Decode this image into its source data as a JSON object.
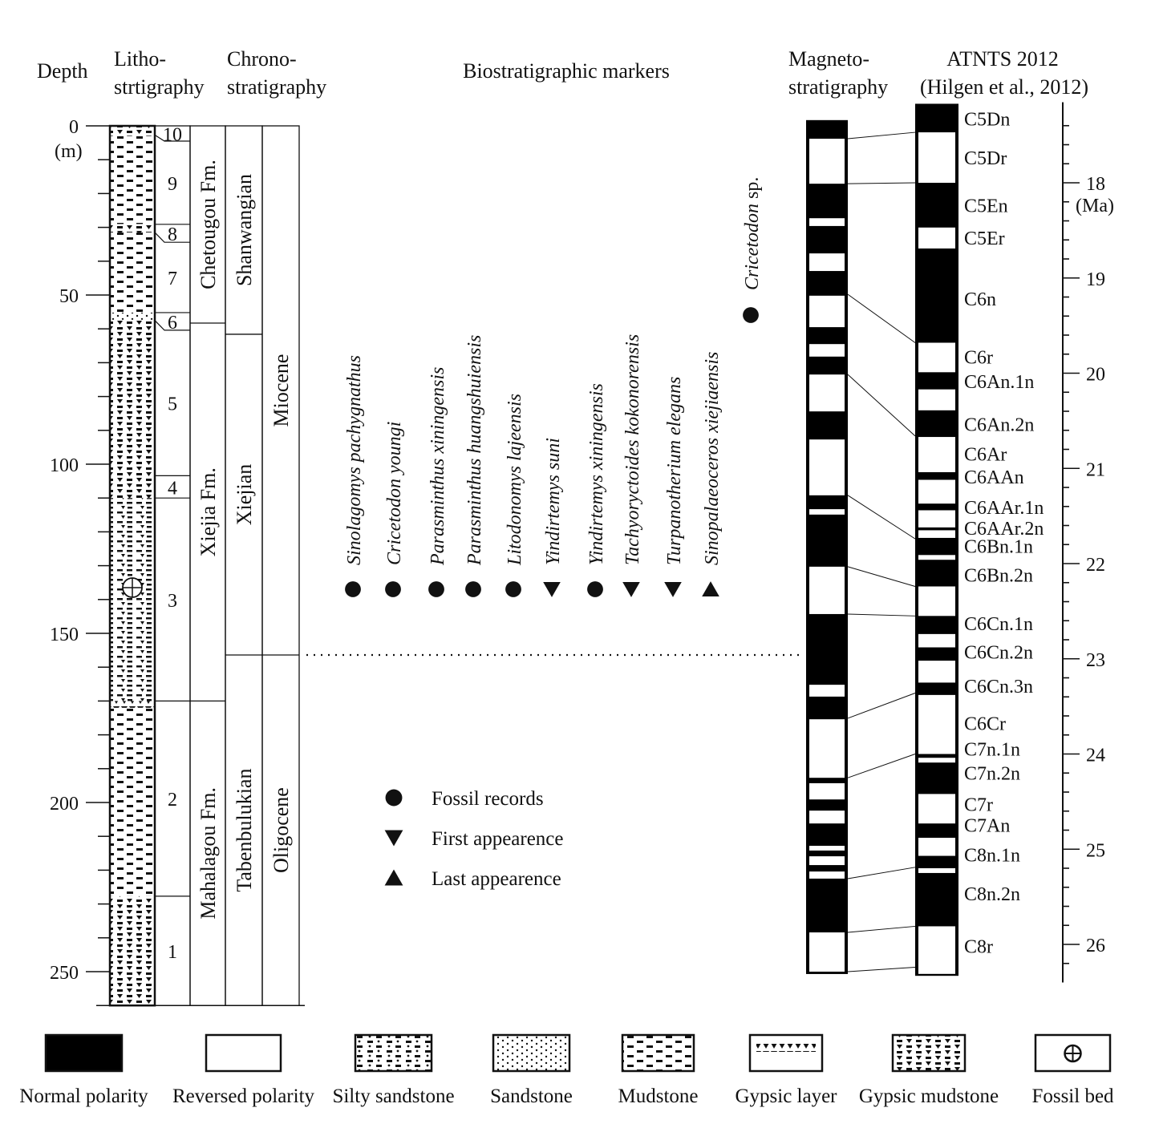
{
  "headers": {
    "depth": "Depth",
    "litho_1": "Litho-",
    "litho_2": "strtigraphy",
    "chrono_1": "Chrono-",
    "chrono_2": "stratigraphy",
    "bio": "Biostratigraphic markers",
    "magneto_1": "Magneto-",
    "magneto_2": "stratigraphy",
    "atnts_1": "ATNTS 2012",
    "atnts_2": "(Hilgen et al., 2012)"
  },
  "depth_axis": {
    "unit": "(m)",
    "range_m": [
      0,
      260
    ],
    "major_ticks": [
      0,
      50,
      100,
      150,
      200,
      250
    ],
    "minor_step_m": 10
  },
  "lithology": [
    {
      "from": 0,
      "to": 3,
      "type": "gypsic_mudstone"
    },
    {
      "from": 3,
      "to": 29,
      "type": "mudstone"
    },
    {
      "from": 29,
      "to": 31.5,
      "type": "gypsic_mudstone"
    },
    {
      "from": 31.5,
      "to": 55.2,
      "type": "mudstone"
    },
    {
      "from": 55.2,
      "to": 57.3,
      "type": "sandstone"
    },
    {
      "from": 57.3,
      "to": 110,
      "type": "gypsic_mudstone"
    },
    {
      "from": 110,
      "to": 170,
      "type": "silty_mud"
    },
    {
      "from": 170,
      "to": 172,
      "type": "gypsic_layer"
    },
    {
      "from": 172,
      "to": 227.7,
      "type": "mudstone"
    },
    {
      "from": 227.7,
      "to": 260,
      "type": "gypsic_mudstone"
    }
  ],
  "fossil_bed_depth_m": 136.5,
  "units": [
    {
      "label": "10",
      "from": 0,
      "to": 4.5,
      "litho_from": 0,
      "litho_to": 2.7
    },
    {
      "label": "9",
      "from": 4.5,
      "to": 29.1,
      "litho_from": 2.7,
      "litho_to": 29.1
    },
    {
      "label": "8",
      "from": 29.1,
      "to": 34.4,
      "litho_from": 29.1,
      "litho_to": 31.5
    },
    {
      "label": "7",
      "from": 34.4,
      "to": 55.2,
      "litho_from": 31.5,
      "litho_to": 55.2
    },
    {
      "label": "6",
      "from": 55.2,
      "to": 60.4,
      "litho_from": 55.2,
      "litho_to": 57.5
    },
    {
      "label": "5",
      "from": 60.4,
      "to": 103.4,
      "litho_from": 57.5,
      "litho_to": 103.4
    },
    {
      "label": "4",
      "from": 103.4,
      "to": 110,
      "litho_from": 103.4,
      "litho_to": 110
    },
    {
      "label": "3",
      "from": 110,
      "to": 170,
      "litho_from": 110,
      "litho_to": 170
    },
    {
      "label": "2",
      "from": 170,
      "to": 227.7,
      "litho_from": 170,
      "litho_to": 227.7
    },
    {
      "label": "1",
      "from": 227.7,
      "to": 260,
      "litho_from": 227.7,
      "litho_to": 260
    }
  ],
  "formations": [
    {
      "name": "Chetougou Fm.",
      "from": 0,
      "to": 58.3
    },
    {
      "name": "Xiejia Fm.",
      "from": 58.3,
      "to": 170
    },
    {
      "name": "Mahalagou Fm.",
      "from": 170,
      "to": 260
    }
  ],
  "stages": [
    {
      "name": "Shanwangian",
      "from": 0,
      "to": 61.6
    },
    {
      "name": "Xiejian",
      "from": 61.6,
      "to": 156.4
    },
    {
      "name": "Tabenbulukian",
      "from": 156.4,
      "to": 260
    }
  ],
  "epochs": [
    {
      "name": "Miocene",
      "from": 0,
      "to": 156.4
    },
    {
      "name": "Oligocene",
      "from": 156.4,
      "to": 260
    }
  ],
  "boundary_depth_m": 156.4,
  "biomarkers": [
    {
      "name": "Sinolagomys pachygnathus",
      "symbol": "circle"
    },
    {
      "name": "Cricetodon youngi",
      "symbol": "circle"
    },
    {
      "name": "Parasminthus xiningensis",
      "symbol": "circle"
    },
    {
      "name": "Parasminthus huangshuiensis",
      "symbol": "circle"
    },
    {
      "name": "Litodonomys lajeensis",
      "symbol": "circle"
    },
    {
      "name": "Yindirtemys suni",
      "symbol": "down"
    },
    {
      "name": "Yindirtemys xiningensis",
      "symbol": "circle"
    },
    {
      "name": "Tachyoryctoides kokonorensis",
      "symbol": "down"
    },
    {
      "name": "Turpanotherium elegans",
      "symbol": "down"
    },
    {
      "name": "Sinopalaeoceros xiejiaensis",
      "symbol": "up"
    }
  ],
  "cricetodon_sp": {
    "genus": "Cricetodon",
    "suffix": " sp.",
    "symbol": "circle"
  },
  "marker_legend": [
    {
      "symbol": "circle",
      "label": "Fossil records"
    },
    {
      "symbol": "down",
      "label": "First appearence"
    },
    {
      "symbol": "up",
      "label": "Last appearence"
    }
  ],
  "magneto": {
    "range_m": [
      -1.7,
      250.7
    ],
    "reversed_m": [
      [
        3.8,
        17.1
      ],
      [
        27.3,
        29.6
      ],
      [
        37.7,
        42.9
      ],
      [
        50.2,
        59.5
      ],
      [
        64.5,
        68.2
      ],
      [
        73.5,
        84.4
      ],
      [
        92.7,
        109.2
      ],
      [
        113.3,
        114.9
      ],
      [
        130.3,
        144.3
      ],
      [
        165.2,
        168.7
      ],
      [
        175.4,
        192.7
      ],
      [
        194.3,
        199.1
      ],
      [
        202.4,
        206.2
      ],
      [
        212.8,
        214.2
      ],
      [
        215.9,
        218.5
      ],
      [
        220.4,
        222.5
      ],
      [
        238.4,
        250.0
      ]
    ]
  },
  "atnts": {
    "range_ma": [
      17.17,
      26.33
    ],
    "reversed_ma": [
      [
        17.47,
        18.0
      ],
      [
        18.47,
        18.69
      ],
      [
        19.68,
        19.99
      ],
      [
        20.17,
        20.39
      ],
      [
        20.67,
        21.04
      ],
      [
        21.12,
        21.37
      ],
      [
        21.44,
        21.62
      ],
      [
        21.65,
        21.73
      ],
      [
        21.91,
        21.96
      ],
      [
        22.24,
        22.55
      ],
      [
        22.74,
        22.88
      ],
      [
        23.02,
        23.25
      ],
      [
        23.38,
        24.0
      ],
      [
        24.04,
        24.09
      ],
      [
        24.42,
        24.73
      ],
      [
        24.88,
        25.07
      ],
      [
        25.2,
        25.25
      ],
      [
        25.81,
        26.31
      ]
    ],
    "chrons": [
      {
        "name": "C5Dn",
        "ma": 17.33
      },
      {
        "name": "C5Dr",
        "ma": 17.74
      },
      {
        "name": "C5En",
        "ma": 18.24
      },
      {
        "name": "C5Er",
        "ma": 18.58
      },
      {
        "name": "C6n",
        "ma": 19.22
      },
      {
        "name": "C6r",
        "ma": 19.83
      },
      {
        "name": "C6An.1n",
        "ma": 20.09
      },
      {
        "name": "C6An.2n",
        "ma": 20.54
      },
      {
        "name": "C6Ar",
        "ma": 20.85
      },
      {
        "name": "C6AAn",
        "ma": 21.09
      },
      {
        "name": "C6AAr.1n",
        "ma": 21.41
      },
      {
        "name": "C6AAr.2n",
        "ma": 21.63
      },
      {
        "name": "C6Bn.1n",
        "ma": 21.82
      },
      {
        "name": "C6Bn.2n",
        "ma": 22.12
      },
      {
        "name": "C6Cn.1n",
        "ma": 22.63
      },
      {
        "name": "C6Cn.2n",
        "ma": 22.93
      },
      {
        "name": "C6Cn.3n",
        "ma": 23.29
      },
      {
        "name": "C6Cr",
        "ma": 23.68
      },
      {
        "name": "C7n.1n",
        "ma": 23.95
      },
      {
        "name": "C7n.2n",
        "ma": 24.2
      },
      {
        "name": "C7r",
        "ma": 24.53
      },
      {
        "name": "C7An",
        "ma": 24.75
      },
      {
        "name": "C8n.1n",
        "ma": 25.06
      },
      {
        "name": "C8n.2n",
        "ma": 25.47
      },
      {
        "name": "C8r",
        "ma": 26.02
      }
    ]
  },
  "age_axis": {
    "unit": "(Ma)",
    "major_ticks": [
      18,
      19,
      20,
      21,
      22,
      23,
      24,
      25,
      26
    ],
    "minor_step_ma": 0.2,
    "range_ma": [
      17.17,
      26.4
    ]
  },
  "correlations": [
    [
      3.8,
      17.47
    ],
    [
      17.1,
      18.0
    ],
    [
      49.8,
      19.68
    ],
    [
      73.5,
      20.66
    ],
    [
      109.2,
      21.74
    ],
    [
      130.3,
      22.24
    ],
    [
      144.3,
      22.55
    ],
    [
      175.1,
      23.36
    ],
    [
      192.7,
      24.0
    ],
    [
      222.5,
      25.19
    ],
    [
      238.4,
      25.81
    ],
    [
      250.0,
      26.24
    ]
  ],
  "legend": [
    {
      "key": "normal",
      "label": "Normal polarity"
    },
    {
      "key": "reversed",
      "label": "Reversed polarity"
    },
    {
      "key": "silty_sandstone",
      "label": "Silty sandstone"
    },
    {
      "key": "sandstone",
      "label": "Sandstone"
    },
    {
      "key": "mudstone",
      "label": "Mudstone"
    },
    {
      "key": "gypsic_layer",
      "label": "Gypsic layer"
    },
    {
      "key": "gypsic_mudstone",
      "label": "Gypsic mudstone"
    },
    {
      "key": "fossil_bed",
      "label": "Fossil bed"
    }
  ]
}
